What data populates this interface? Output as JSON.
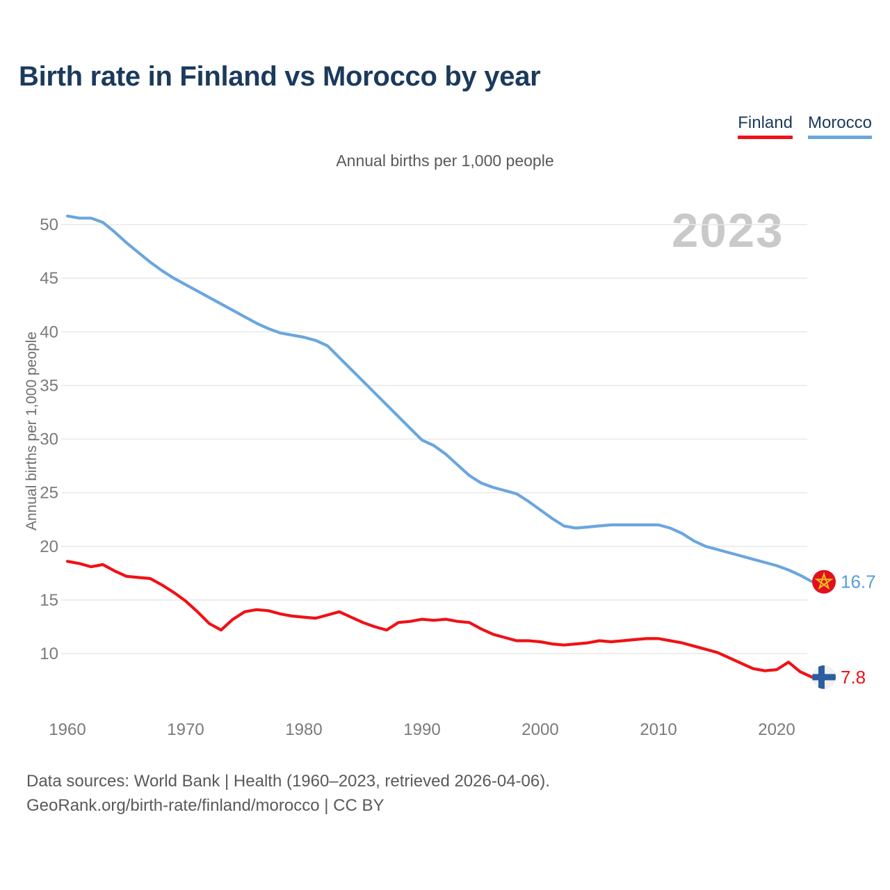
{
  "header": {
    "title": "Birth rate in Finland vs Morocco by year",
    "subtitle": "Annual births per 1,000 people",
    "watermark": "2023"
  },
  "legend": {
    "items": [
      {
        "label": "Finland",
        "color": "#f01116"
      },
      {
        "label": "Morocco",
        "color": "#6ba6de"
      }
    ]
  },
  "footer": {
    "line1": "Data sources: World Bank | Health (1960–2023, retrieved 2026-04-06).",
    "line2": "GeoRank.org/birth-rate/finland/morocco | CC BY"
  },
  "chart_data": {
    "type": "line",
    "title": "Birth rate in Finland vs Morocco by year",
    "subtitle": "Annual births per 1,000 people",
    "xlabel": "",
    "ylabel": "Annual births per 1,000 people",
    "x_start": 1960,
    "x_end": 2023,
    "xticks": [
      1960,
      1970,
      1980,
      1990,
      2000,
      2010,
      2020
    ],
    "yticks": [
      10,
      15,
      20,
      25,
      30,
      35,
      40,
      45,
      50
    ],
    "ylim": [
      6,
      52
    ],
    "grid": "horizontal",
    "legend_position": "top-right",
    "series": [
      {
        "name": "Finland",
        "color": "#f01116",
        "label_color": "#f01116",
        "end_label": "7.8",
        "flag": "finland-flag-icon",
        "values": [
          18.6,
          18.4,
          18.1,
          18.3,
          17.7,
          17.2,
          17.1,
          17.0,
          16.4,
          15.7,
          14.9,
          13.9,
          12.8,
          12.2,
          13.2,
          13.9,
          14.1,
          14.0,
          13.7,
          13.5,
          13.4,
          13.3,
          13.6,
          13.9,
          13.4,
          12.9,
          12.5,
          12.2,
          12.9,
          13.0,
          13.2,
          13.1,
          13.2,
          13.0,
          12.9,
          12.3,
          11.8,
          11.5,
          11.2,
          11.2,
          11.1,
          10.9,
          10.8,
          10.9,
          11.0,
          11.2,
          11.1,
          11.2,
          11.3,
          11.4,
          11.4,
          11.2,
          11.0,
          10.7,
          10.4,
          10.1,
          9.6,
          9.1,
          8.6,
          8.4,
          8.5,
          9.2,
          8.3,
          7.8
        ]
      },
      {
        "name": "Morocco",
        "color": "#6ba6de",
        "label_color": "#5b9cd6",
        "end_label": "16.7",
        "flag": "morocco-flag-icon",
        "values": [
          50.8,
          50.6,
          50.6,
          50.2,
          49.3,
          48.3,
          47.4,
          46.5,
          45.7,
          45.0,
          44.4,
          43.8,
          43.2,
          42.6,
          42.0,
          41.4,
          40.8,
          40.3,
          39.9,
          39.7,
          39.5,
          39.2,
          38.7,
          37.6,
          36.5,
          35.4,
          34.3,
          33.2,
          32.1,
          31.0,
          29.9,
          29.4,
          28.6,
          27.6,
          26.6,
          25.9,
          25.5,
          25.2,
          24.9,
          24.2,
          23.4,
          22.6,
          21.9,
          21.7,
          21.8,
          21.9,
          22.0,
          22.0,
          22.0,
          22.0,
          22.0,
          21.7,
          21.2,
          20.5,
          20.0,
          19.7,
          19.4,
          19.1,
          18.8,
          18.5,
          18.2,
          17.8,
          17.3,
          16.7
        ]
      }
    ]
  }
}
